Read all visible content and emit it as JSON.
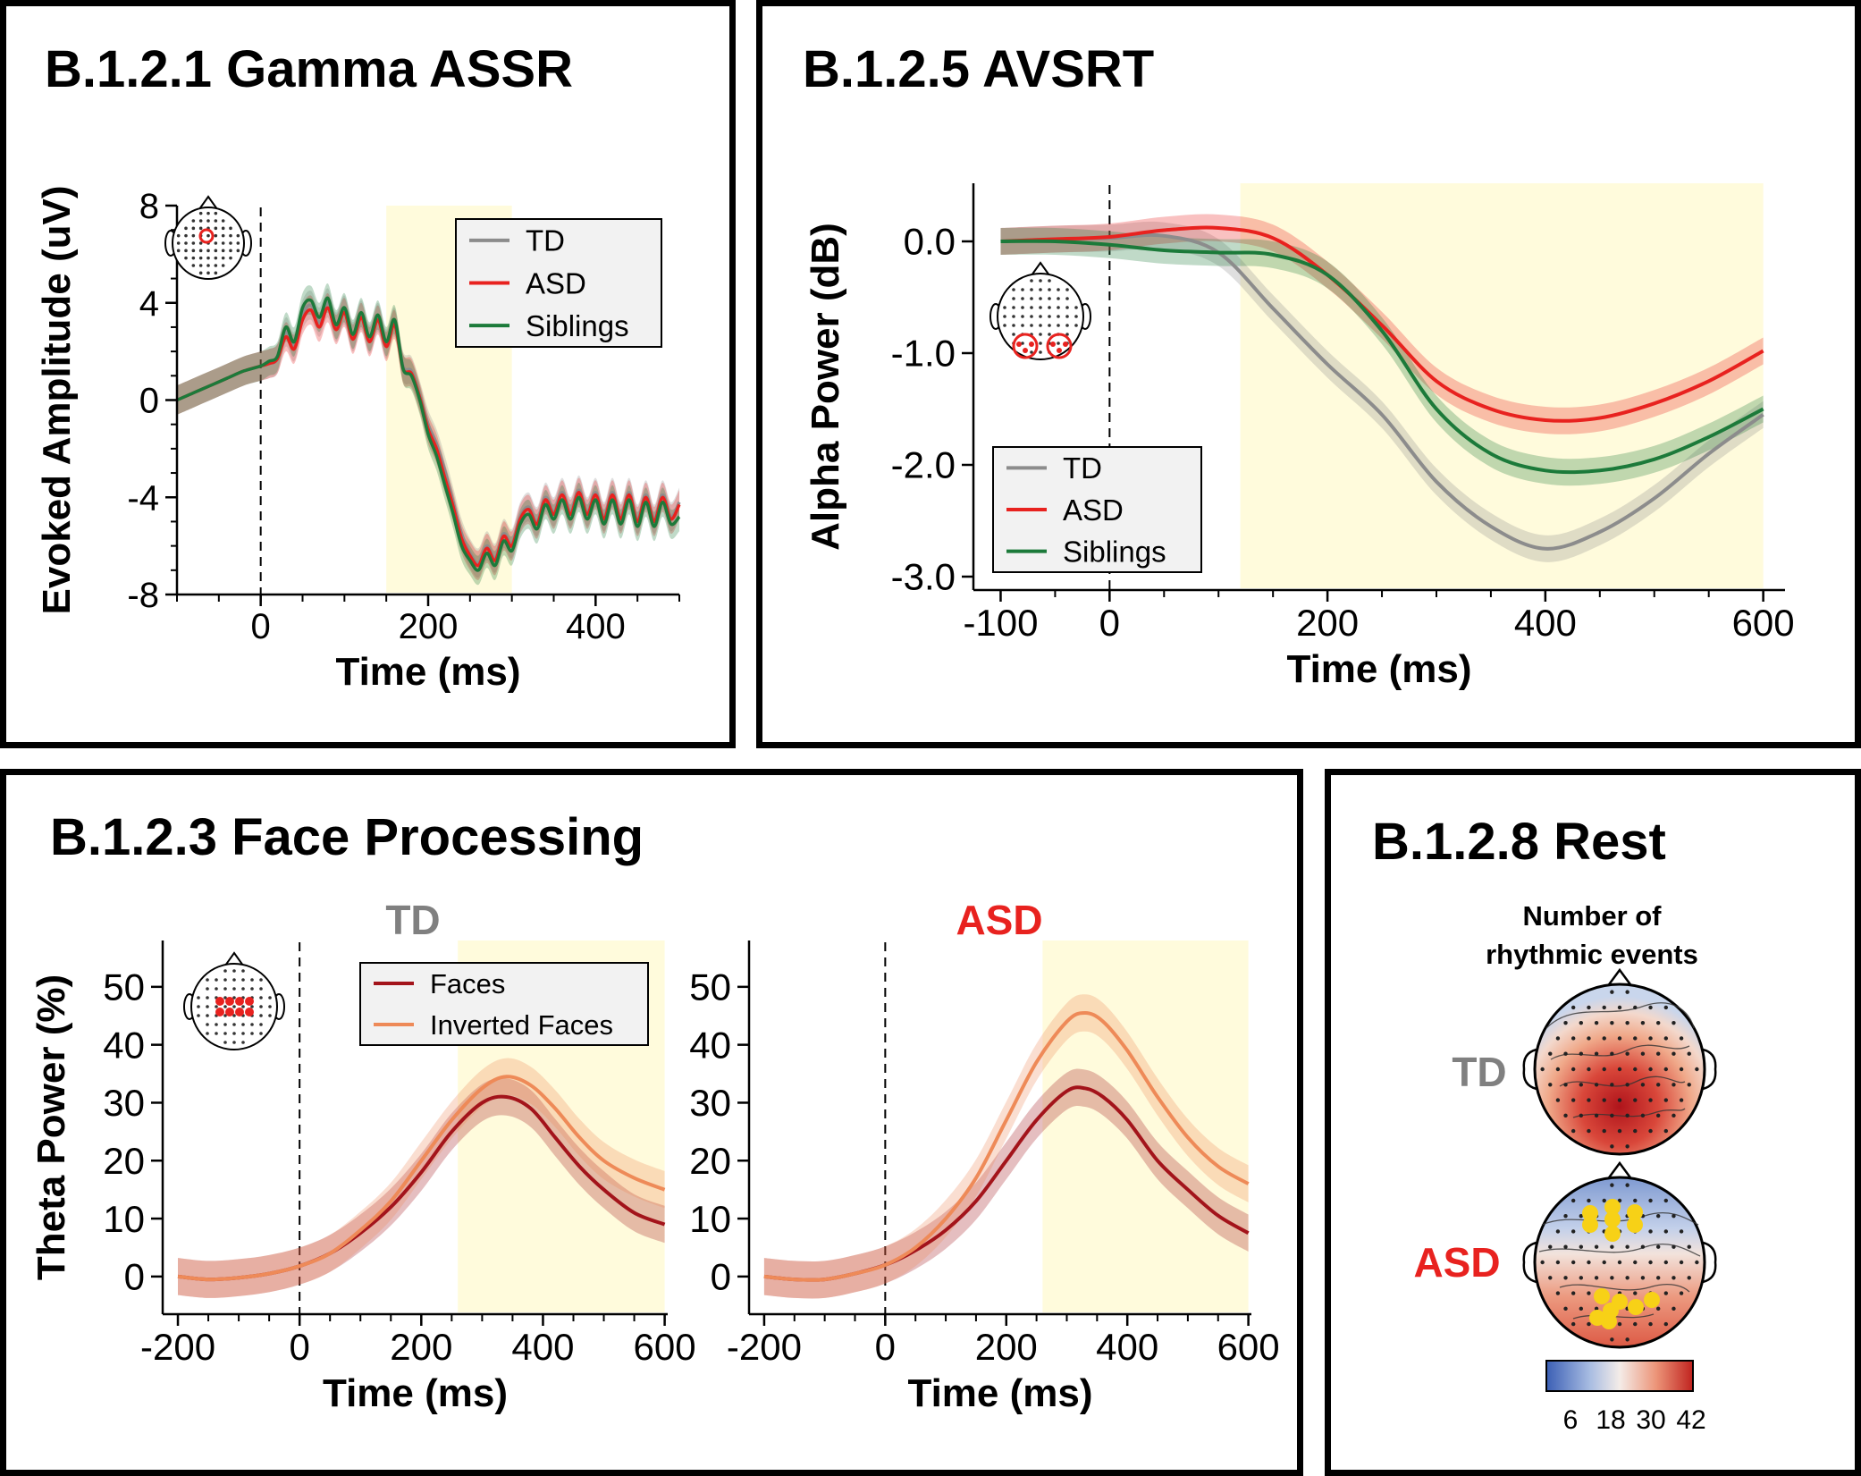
{
  "colors": {
    "td": "#8c8c8c",
    "asd": "#e8221f",
    "siblings": "#1c7a3a",
    "faces": "#a3141b",
    "inverted": "#ee8a58",
    "highlight": "#fffbdc"
  },
  "panels": {
    "gamma": {
      "title": "B.1.2.1 Gamma ASSR"
    },
    "avsrt": {
      "title": "B.1.2.5 AVSRT"
    },
    "face": {
      "title": "B.1.2.3 Face Processing",
      "td_label": "TD",
      "asd_label": "ASD"
    },
    "rest": {
      "title": "B.1.2.8 Rest",
      "subtitle_line1": "Number of",
      "subtitle_line2": "rhythmic events",
      "td_label": "TD",
      "asd_label": "ASD",
      "colorbar_ticks": [
        "6",
        "18",
        "30",
        "42"
      ]
    }
  },
  "chart_data": [
    {
      "id": "gamma",
      "type": "line",
      "title": "B.1.2.1 Gamma ASSR",
      "xlabel": "Time (ms)",
      "ylabel": "Evoked Amplitude (uV)",
      "xlim": [
        -100,
        500
      ],
      "ylim": [
        -8,
        8
      ],
      "xticks": [
        0,
        200,
        400
      ],
      "yticks": [
        -8,
        -4,
        0,
        4,
        8
      ],
      "highlight": [
        150,
        300
      ],
      "legend": "top-right",
      "x": [
        -100,
        -80,
        -60,
        -40,
        -20,
        0,
        10,
        20,
        30,
        40,
        50,
        60,
        70,
        80,
        90,
        100,
        110,
        120,
        130,
        140,
        150,
        160,
        170,
        180,
        190,
        200,
        210,
        220,
        230,
        240,
        250,
        260,
        270,
        280,
        290,
        300,
        310,
        320,
        330,
        340,
        350,
        360,
        370,
        380,
        390,
        400,
        410,
        420,
        430,
        440,
        450,
        460,
        470,
        480,
        490,
        500
      ],
      "series": [
        {
          "name": "TD",
          "values": [
            0,
            0.3,
            0.6,
            0.9,
            1.2,
            1.4,
            1.5,
            1.7,
            2.8,
            2.2,
            3.5,
            3.9,
            3.2,
            4.0,
            3.0,
            3.7,
            2.6,
            3.5,
            2.5,
            3.4,
            2.3,
            3.2,
            1.4,
            1.2,
            0.2,
            -1.0,
            -1.8,
            -2.9,
            -4.2,
            -5.5,
            -6.3,
            -6.7,
            -6.0,
            -6.5,
            -5.5,
            -5.9,
            -4.8,
            -4.4,
            -5.0,
            -4.0,
            -4.6,
            -3.8,
            -4.6,
            -3.7,
            -4.6,
            -3.8,
            -4.8,
            -3.8,
            -4.8,
            -3.8,
            -4.9,
            -3.9,
            -4.9,
            -3.9,
            -4.8,
            -4.2
          ]
        },
        {
          "name": "ASD",
          "values": [
            0,
            0.3,
            0.6,
            0.9,
            1.2,
            1.4,
            1.5,
            1.7,
            2.6,
            2.1,
            3.3,
            3.7,
            3.0,
            3.8,
            2.9,
            3.6,
            2.5,
            3.4,
            2.4,
            3.3,
            2.2,
            3.1,
            1.3,
            1.1,
            0.1,
            -1.2,
            -2.0,
            -3.2,
            -4.4,
            -5.7,
            -6.4,
            -6.8,
            -6.1,
            -6.6,
            -5.6,
            -6.0,
            -4.9,
            -4.5,
            -5.1,
            -4.1,
            -4.7,
            -3.9,
            -4.7,
            -3.8,
            -4.7,
            -3.9,
            -4.9,
            -3.9,
            -4.9,
            -3.9,
            -5.0,
            -4.0,
            -5.0,
            -4.0,
            -4.9,
            -4.3
          ]
        },
        {
          "name": "Siblings",
          "values": [
            0,
            0.3,
            0.6,
            0.9,
            1.2,
            1.4,
            1.6,
            1.8,
            3.0,
            2.4,
            3.8,
            4.1,
            3.4,
            4.2,
            3.1,
            3.8,
            2.7,
            3.6,
            2.6,
            3.5,
            2.4,
            3.3,
            1.3,
            1.0,
            0.0,
            -1.4,
            -2.3,
            -3.5,
            -4.7,
            -6.0,
            -6.6,
            -7.0,
            -6.3,
            -6.8,
            -5.8,
            -6.2,
            -5.1,
            -4.7,
            -5.3,
            -4.3,
            -4.9,
            -4.1,
            -4.9,
            -4.0,
            -4.9,
            -4.1,
            -5.1,
            -4.1,
            -5.1,
            -4.1,
            -5.2,
            -4.2,
            -5.2,
            -4.2,
            -5.1,
            -4.8
          ]
        }
      ]
    },
    {
      "id": "avsrt",
      "type": "line",
      "title": "B.1.2.5 AVSRT",
      "xlabel": "Time (ms)",
      "ylabel": "Alpha Power (dB)",
      "xlim": [
        -100,
        600
      ],
      "ylim": [
        -3.0,
        0.4
      ],
      "xtick_labels": [
        "-100",
        "0",
        "200",
        "400",
        "600"
      ],
      "xticks": [
        -100,
        0,
        200,
        400,
        600
      ],
      "yticks": [
        0.0,
        -1.0,
        -2.0,
        -3.0
      ],
      "ytick_labels": [
        "0.0",
        "-1.0",
        "-2.0",
        "-3.0"
      ],
      "highlight": [
        120,
        600
      ],
      "legend": "bottom-left",
      "x": [
        -100,
        -50,
        0,
        50,
        100,
        150,
        200,
        250,
        300,
        350,
        400,
        450,
        500,
        550,
        600
      ],
      "series": [
        {
          "name": "TD",
          "values": [
            0,
            0.02,
            0.03,
            0.05,
            -0.1,
            -0.6,
            -1.1,
            -1.55,
            -2.15,
            -2.55,
            -2.75,
            -2.6,
            -2.3,
            -1.9,
            -1.55
          ]
        },
        {
          "name": "ASD",
          "values": [
            0,
            0.02,
            0.04,
            0.1,
            0.12,
            0.03,
            -0.3,
            -0.75,
            -1.25,
            -1.5,
            -1.6,
            -1.58,
            -1.45,
            -1.25,
            -0.98
          ]
        },
        {
          "name": "Siblings",
          "values": [
            0,
            0,
            -0.03,
            -0.08,
            -0.1,
            -0.12,
            -0.3,
            -0.8,
            -1.5,
            -1.9,
            -2.05,
            -2.05,
            -1.95,
            -1.75,
            -1.5
          ]
        }
      ]
    },
    {
      "id": "face_td",
      "type": "line",
      "title": "TD",
      "xlabel": "Time (ms)",
      "ylabel": "Theta Power (%)",
      "xlim": [
        -200,
        600
      ],
      "ylim": [
        0,
        55
      ],
      "xtick_labels": [
        "-200",
        "0",
        "200",
        "400",
        "600"
      ],
      "xticks": [
        -200,
        0,
        200,
        400,
        600
      ],
      "yticks": [
        0,
        10,
        20,
        30,
        40,
        50
      ],
      "highlight": [
        260,
        600
      ],
      "legend": "top-right",
      "x": [
        -200,
        -150,
        -100,
        -50,
        0,
        50,
        100,
        150,
        200,
        250,
        300,
        340,
        380,
        420,
        460,
        500,
        550,
        600
      ],
      "series": [
        {
          "name": "Faces",
          "values": [
            0,
            -0.5,
            -0.2,
            0.5,
            1.8,
            4,
            7.5,
            12,
            18,
            25,
            30,
            31,
            29,
            24,
            19,
            15,
            11,
            9
          ]
        },
        {
          "name": "Inverted Faces",
          "values": [
            0,
            -0.5,
            -0.2,
            0.5,
            1.8,
            4,
            8,
            13,
            20,
            27,
            32.5,
            34.5,
            33,
            29,
            24,
            20,
            17,
            15
          ]
        }
      ]
    },
    {
      "id": "face_asd",
      "type": "line",
      "title": "ASD",
      "xlabel": "Time (ms)",
      "ylabel": "",
      "xlim": [
        -200,
        600
      ],
      "ylim": [
        0,
        55
      ],
      "xtick_labels": [
        "-200",
        "0",
        "200",
        "400",
        "600"
      ],
      "xticks": [
        -200,
        0,
        200,
        400,
        600
      ],
      "yticks": [
        0,
        10,
        20,
        30,
        40,
        50
      ],
      "highlight": [
        260,
        600
      ],
      "x": [
        -200,
        -150,
        -100,
        -50,
        0,
        50,
        100,
        150,
        200,
        250,
        300,
        330,
        360,
        400,
        450,
        500,
        550,
        600
      ],
      "series": [
        {
          "name": "Faces",
          "values": [
            0,
            -0.5,
            -0.5,
            0.5,
            2,
            4.5,
            8,
            13,
            20,
            27,
            32,
            32.5,
            31,
            27,
            20,
            15,
            10.5,
            7.5
          ]
        },
        {
          "name": "Inverted Faces",
          "values": [
            0,
            -0.5,
            -0.5,
            0.5,
            2,
            5,
            10,
            17,
            27,
            37,
            44,
            45.5,
            44,
            39,
            31,
            24,
            19,
            16
          ]
        }
      ]
    }
  ]
}
